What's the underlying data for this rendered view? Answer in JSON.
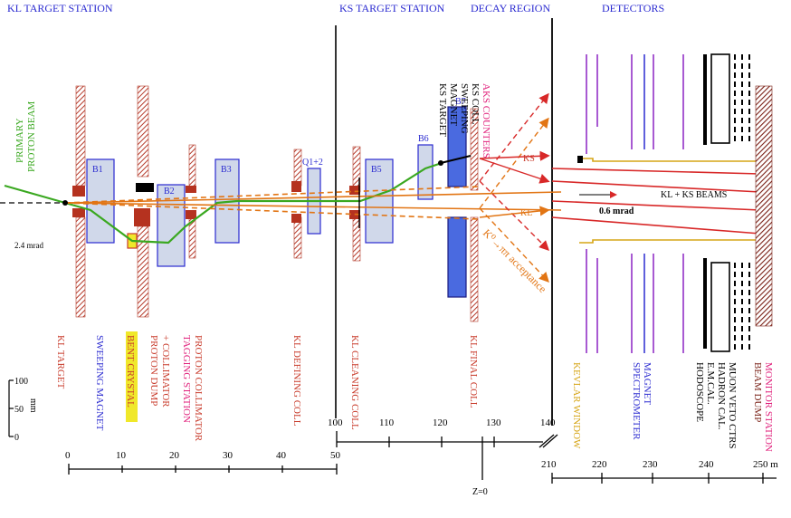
{
  "sections": {
    "kl_target_station": "KL TARGET STATION",
    "ks_target_station": "KS TARGET STATION",
    "decay_region": "DECAY REGION",
    "detectors": "DETECTORS"
  },
  "beam_labels": {
    "primary_proton_beam_1": "PRIMARY",
    "primary_proton_beam_2": "PROTON BEAM",
    "angle_24": "2.4 mrad",
    "angle_06": "0.6 mrad",
    "ks": "KS",
    "kl": "KL",
    "kl_ks_beams": "KL + KS BEAMS",
    "acceptance": "K⁰→ππ acceptance"
  },
  "magnets": {
    "b1": "B1",
    "b2": "B2",
    "b3": "B3",
    "b5": "B5",
    "b6": "B6",
    "b7": "B7",
    "q12": "Q1+2"
  },
  "ks_vertical_labels": [
    "KS TARGET",
    "MAGNET",
    "SWEEPING",
    "KS COLL",
    "AKS COUNTERS"
  ],
  "bottom_labels": {
    "kl_target": "KL TARGET",
    "sweeping_magnet": "SWEEPING MAGNET",
    "bent_crystal": "BENT CRYSTAL",
    "proton_dump": "PROTON DUMP",
    "collimator": "+ COLLIMATOR",
    "tagging_station": "TAGGING STATION",
    "proton_collimator": "PROTON COLLIMATOR",
    "kl_defining_coll": "KL DEFINING COLL",
    "kl_cleaning_coll": "KL CLEANING COLL",
    "kl_final_coll": "KL FINAL COLL",
    "kevlar_window": "KEVLAR WINDOW",
    "spectrometer": "SPECTROMETER",
    "magnet": "MAGNET",
    "hodoscope": "HODOSCOPE",
    "em_cal": "E.M.CAL.",
    "hadron_cal": "HADRON CAL.",
    "muon_veto": "MUON VETO CTRS",
    "beam_dump": "BEAM DUMP",
    "monitor_station": "MONITOR STATION"
  },
  "mm_scale": {
    "t100": "100",
    "t50": "50",
    "t0": "0",
    "unit": "mm"
  },
  "axis1_ticks": [
    "0",
    "10",
    "20",
    "30",
    "40",
    "50"
  ],
  "axis2_ticks": [
    "100",
    "110",
    "120",
    "130",
    "140"
  ],
  "axis3_ticks": [
    "210",
    "220",
    "230",
    "240",
    "250 m"
  ],
  "z0": "Z=0"
}
